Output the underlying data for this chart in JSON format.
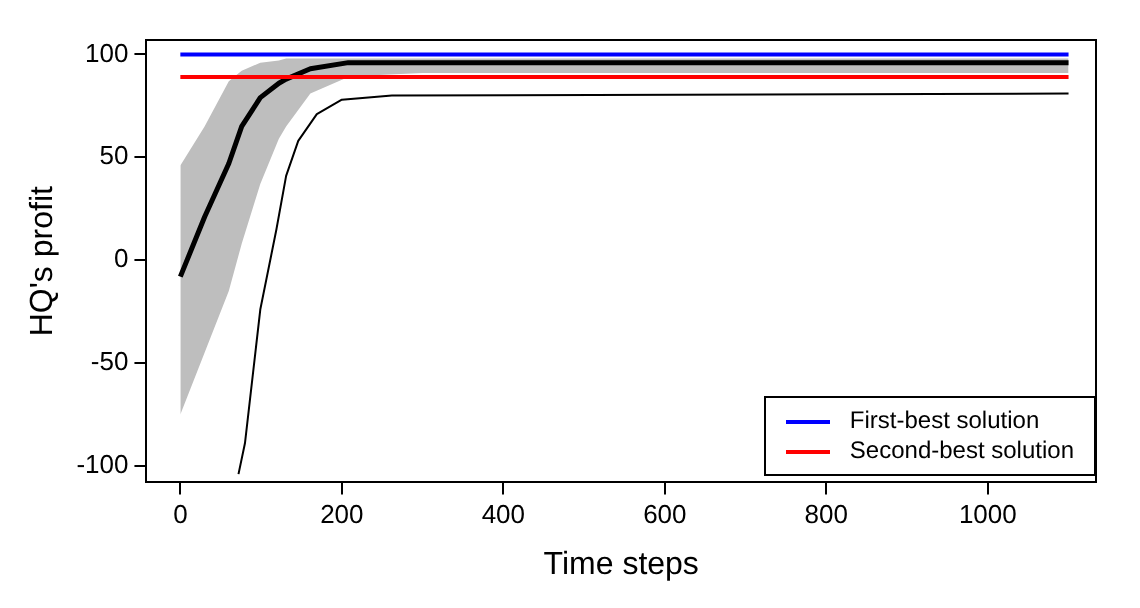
{
  "chart_data": {
    "type": "line",
    "xlabel": "Time steps",
    "ylabel": "HQ's profit",
    "xlim": [
      -42,
      1134
    ],
    "ylim": [
      -108,
      107
    ],
    "xticks": [
      0,
      200,
      400,
      600,
      800,
      1000
    ],
    "yticks": [
      -100,
      -50,
      0,
      50,
      100
    ],
    "grid": false,
    "legend": "bottom right",
    "marker": "none",
    "line_style": "solid",
    "series": [
      {
        "name": "First-best solution",
        "color": "#0000ff",
        "x": [
          0,
          1100
        ],
        "values": [
          100,
          100
        ]
      },
      {
        "name": "Second-best solution",
        "color": "#ff0000",
        "x": [
          0,
          1100
        ],
        "values": [
          89,
          89
        ]
      },
      {
        "color": "#000000",
        "x": [
          0,
          30,
          60,
          76,
          99,
          122,
          131,
          161,
          208,
          246,
          300,
          1100
        ],
        "values": [
          -8,
          21,
          47,
          65,
          79,
          86,
          88,
          93,
          96,
          96,
          96,
          96
        ],
        "lower": [
          -75,
          -45,
          -15,
          8,
          37,
          59,
          65,
          81,
          89,
          90,
          91,
          91
        ],
        "upper": [
          46,
          65,
          87,
          92,
          96,
          97,
          98,
          98,
          98,
          98,
          98,
          98
        ]
      },
      {
        "color": "#000000",
        "x": [
          72,
          80,
          99,
          119,
          131,
          146,
          169,
          200,
          262,
          1100
        ],
        "values": [
          -104,
          -89,
          -24,
          15,
          41,
          58,
          71,
          78,
          80,
          81
        ]
      }
    ]
  }
}
